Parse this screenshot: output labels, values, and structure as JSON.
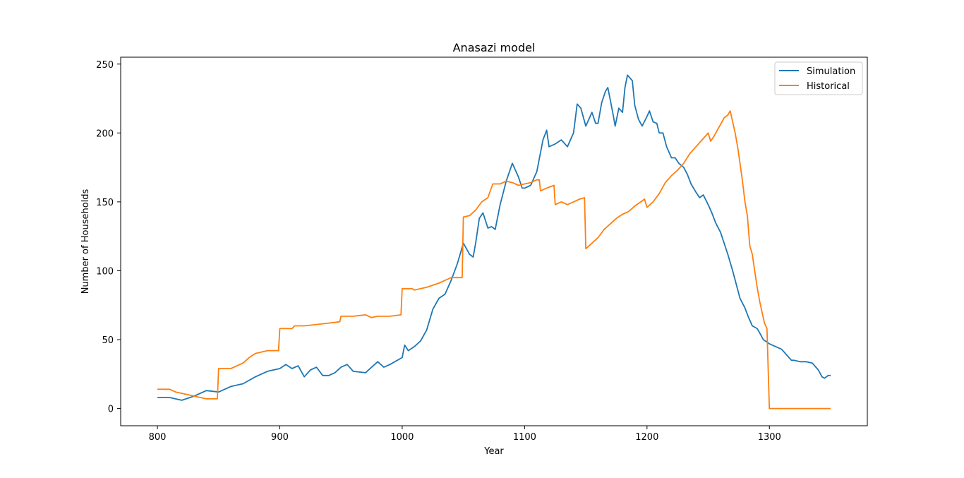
{
  "chart_data": {
    "type": "line",
    "title": "Anasazi model",
    "xlabel": "Year",
    "ylabel": "Number of Households",
    "xlim": [
      770,
      1380
    ],
    "ylim": [
      -12.5,
      255
    ],
    "xticks": [
      800,
      900,
      1000,
      1100,
      1200,
      1300
    ],
    "yticks": [
      0,
      50,
      100,
      150,
      200,
      250
    ],
    "grid": false,
    "legend_position": "top-right",
    "series": [
      {
        "name": "Simulation",
        "color": "#1f77b4",
        "points": [
          [
            800,
            8
          ],
          [
            810,
            8
          ],
          [
            820,
            6
          ],
          [
            830,
            9
          ],
          [
            840,
            13
          ],
          [
            850,
            12
          ],
          [
            860,
            16
          ],
          [
            870,
            18
          ],
          [
            880,
            23
          ],
          [
            890,
            27
          ],
          [
            900,
            29
          ],
          [
            905,
            32
          ],
          [
            910,
            29
          ],
          [
            915,
            31
          ],
          [
            920,
            23
          ],
          [
            925,
            28
          ],
          [
            930,
            30
          ],
          [
            935,
            24
          ],
          [
            940,
            24
          ],
          [
            945,
            26
          ],
          [
            950,
            30
          ],
          [
            955,
            32
          ],
          [
            960,
            27
          ],
          [
            970,
            26
          ],
          [
            975,
            30
          ],
          [
            980,
            34
          ],
          [
            985,
            30
          ],
          [
            990,
            32
          ],
          [
            1000,
            37
          ],
          [
            1002,
            46
          ],
          [
            1005,
            42
          ],
          [
            1010,
            45
          ],
          [
            1015,
            49
          ],
          [
            1020,
            57
          ],
          [
            1025,
            72
          ],
          [
            1030,
            80
          ],
          [
            1035,
            83
          ],
          [
            1040,
            93
          ],
          [
            1045,
            105
          ],
          [
            1050,
            120
          ],
          [
            1055,
            112
          ],
          [
            1058,
            110
          ],
          [
            1060,
            120
          ],
          [
            1063,
            138
          ],
          [
            1066,
            142
          ],
          [
            1070,
            131
          ],
          [
            1073,
            132
          ],
          [
            1076,
            130
          ],
          [
            1080,
            148
          ],
          [
            1085,
            165
          ],
          [
            1090,
            178
          ],
          [
            1095,
            168
          ],
          [
            1098,
            160
          ],
          [
            1100,
            160
          ],
          [
            1105,
            162
          ],
          [
            1110,
            172
          ],
          [
            1115,
            195
          ],
          [
            1118,
            202
          ],
          [
            1120,
            190
          ],
          [
            1125,
            192
          ],
          [
            1130,
            195
          ],
          [
            1135,
            190
          ],
          [
            1140,
            200
          ],
          [
            1143,
            221
          ],
          [
            1146,
            218
          ],
          [
            1150,
            205
          ],
          [
            1155,
            215
          ],
          [
            1158,
            207
          ],
          [
            1160,
            207
          ],
          [
            1163,
            222
          ],
          [
            1166,
            230
          ],
          [
            1168,
            233
          ],
          [
            1172,
            215
          ],
          [
            1174,
            205
          ],
          [
            1177,
            218
          ],
          [
            1180,
            215
          ],
          [
            1182,
            233
          ],
          [
            1184,
            242
          ],
          [
            1188,
            238
          ],
          [
            1190,
            220
          ],
          [
            1193,
            210
          ],
          [
            1196,
            205
          ],
          [
            1200,
            212
          ],
          [
            1202,
            216
          ],
          [
            1205,
            208
          ],
          [
            1208,
            207
          ],
          [
            1210,
            200
          ],
          [
            1213,
            200
          ],
          [
            1216,
            190
          ],
          [
            1220,
            182
          ],
          [
            1223,
            182
          ],
          [
            1226,
            178
          ],
          [
            1230,
            175
          ],
          [
            1233,
            170
          ],
          [
            1236,
            163
          ],
          [
            1240,
            157
          ],
          [
            1243,
            153
          ],
          [
            1246,
            155
          ],
          [
            1250,
            148
          ],
          [
            1253,
            142
          ],
          [
            1256,
            135
          ],
          [
            1260,
            128
          ],
          [
            1263,
            120
          ],
          [
            1266,
            112
          ],
          [
            1270,
            100
          ],
          [
            1273,
            90
          ],
          [
            1276,
            80
          ],
          [
            1280,
            73
          ],
          [
            1283,
            66
          ],
          [
            1286,
            60
          ],
          [
            1290,
            58
          ],
          [
            1292,
            55
          ],
          [
            1295,
            50
          ],
          [
            1300,
            47
          ],
          [
            1305,
            45
          ],
          [
            1310,
            43
          ],
          [
            1315,
            38
          ],
          [
            1318,
            35
          ],
          [
            1320,
            35
          ],
          [
            1325,
            34
          ],
          [
            1330,
            34
          ],
          [
            1335,
            33
          ],
          [
            1340,
            28
          ],
          [
            1343,
            23
          ],
          [
            1345,
            22
          ],
          [
            1348,
            24
          ],
          [
            1350,
            24
          ]
        ]
      },
      {
        "name": "Historical",
        "color": "#ff7f0e",
        "points": [
          [
            800,
            14
          ],
          [
            810,
            14
          ],
          [
            815,
            12
          ],
          [
            820,
            11
          ],
          [
            830,
            9
          ],
          [
            840,
            7
          ],
          [
            849,
            7
          ],
          [
            850,
            29
          ],
          [
            860,
            29
          ],
          [
            870,
            33
          ],
          [
            875,
            37
          ],
          [
            880,
            40
          ],
          [
            890,
            42
          ],
          [
            899,
            42
          ],
          [
            900,
            58
          ],
          [
            910,
            58
          ],
          [
            912,
            60
          ],
          [
            920,
            60
          ],
          [
            930,
            61
          ],
          [
            940,
            62
          ],
          [
            949,
            63
          ],
          [
            950,
            67
          ],
          [
            960,
            67
          ],
          [
            970,
            68
          ],
          [
            975,
            66
          ],
          [
            980,
            67
          ],
          [
            990,
            67
          ],
          [
            999,
            68
          ],
          [
            1000,
            87
          ],
          [
            1008,
            87
          ],
          [
            1010,
            86
          ],
          [
            1020,
            88
          ],
          [
            1030,
            91
          ],
          [
            1035,
            93
          ],
          [
            1040,
            95
          ],
          [
            1049,
            95
          ],
          [
            1050,
            139
          ],
          [
            1055,
            140
          ],
          [
            1060,
            144
          ],
          [
            1065,
            150
          ],
          [
            1070,
            153
          ],
          [
            1074,
            163
          ],
          [
            1080,
            163
          ],
          [
            1085,
            165
          ],
          [
            1090,
            164
          ],
          [
            1095,
            162
          ],
          [
            1100,
            163
          ],
          [
            1105,
            164
          ],
          [
            1110,
            166
          ],
          [
            1112,
            166
          ],
          [
            1113,
            158
          ],
          [
            1118,
            160
          ],
          [
            1124,
            162
          ],
          [
            1125,
            148
          ],
          [
            1130,
            150
          ],
          [
            1135,
            148
          ],
          [
            1140,
            150
          ],
          [
            1145,
            152
          ],
          [
            1149,
            153
          ],
          [
            1150,
            116
          ],
          [
            1155,
            120
          ],
          [
            1160,
            124
          ],
          [
            1165,
            130
          ],
          [
            1170,
            134
          ],
          [
            1175,
            138
          ],
          [
            1180,
            141
          ],
          [
            1185,
            143
          ],
          [
            1190,
            147
          ],
          [
            1195,
            150
          ],
          [
            1198,
            152
          ],
          [
            1200,
            146
          ],
          [
            1205,
            150
          ],
          [
            1210,
            156
          ],
          [
            1215,
            164
          ],
          [
            1220,
            169
          ],
          [
            1225,
            173
          ],
          [
            1230,
            178
          ],
          [
            1235,
            185
          ],
          [
            1240,
            190
          ],
          [
            1245,
            195
          ],
          [
            1250,
            200
          ],
          [
            1252,
            194
          ],
          [
            1255,
            198
          ],
          [
            1258,
            203
          ],
          [
            1260,
            206
          ],
          [
            1263,
            211
          ],
          [
            1266,
            213
          ],
          [
            1268,
            216
          ],
          [
            1270,
            208
          ],
          [
            1272,
            200
          ],
          [
            1274,
            190
          ],
          [
            1276,
            178
          ],
          [
            1278,
            165
          ],
          [
            1280,
            150
          ],
          [
            1282,
            140
          ],
          [
            1284,
            118
          ],
          [
            1286,
            112
          ],
          [
            1288,
            100
          ],
          [
            1290,
            88
          ],
          [
            1292,
            78
          ],
          [
            1294,
            70
          ],
          [
            1296,
            62
          ],
          [
            1298,
            58
          ],
          [
            1300,
            0
          ],
          [
            1350,
            0
          ]
        ]
      }
    ]
  }
}
